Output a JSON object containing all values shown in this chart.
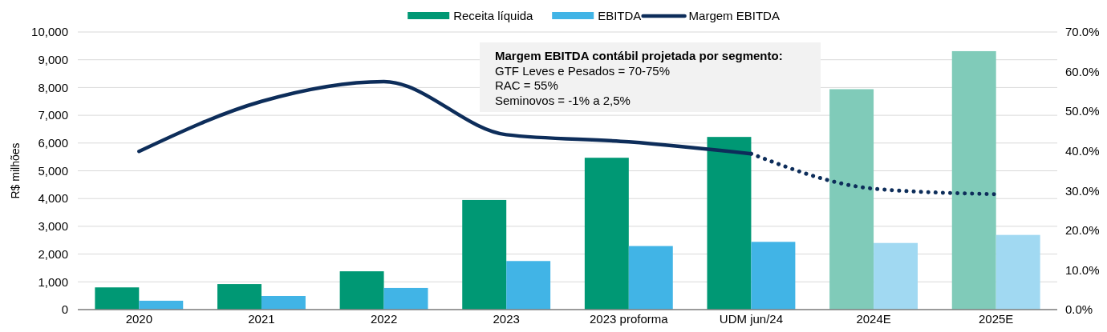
{
  "chart_data": {
    "type": "bar",
    "ylabel": "R$ milhões",
    "categories": [
      "2020",
      "2021",
      "2022",
      "2023",
      "2023 proforma",
      "UDM jun/24",
      "2024E",
      "2025E"
    ],
    "series": [
      {
        "name": "Receita líquida",
        "color": "#009874",
        "colors": [
          "#009874",
          "#009874",
          "#009874",
          "#009874",
          "#009874",
          "#009874",
          "#80cbb9",
          "#80cbb9"
        ],
        "values": [
          800,
          920,
          1380,
          3950,
          5470,
          6220,
          7940,
          9310
        ]
      },
      {
        "name": "EBITDA",
        "color": "#41b4e6",
        "colors": [
          "#41b4e6",
          "#41b4e6",
          "#41b4e6",
          "#41b4e6",
          "#41b4e6",
          "#41b4e6",
          "#a1d9f2",
          "#a1d9f2"
        ],
        "values": [
          320,
          490,
          780,
          1750,
          2290,
          2440,
          2400,
          2690
        ]
      },
      {
        "name": "Margem EBITDA",
        "type": "line",
        "axis": "y2",
        "color": "#0d2d5a",
        "line_style": "solid",
        "values": [
          39.9,
          52.5,
          57.5,
          44.1,
          42.3,
          39.3,
          null,
          null
        ]
      },
      {
        "type": "line",
        "axis": "y2",
        "color": "#0d2d5a",
        "line_style": "dotted",
        "values": [
          null,
          null,
          null,
          null,
          null,
          39.3,
          30.5,
          29.1
        ]
      }
    ],
    "ylim": [
      0,
      10000
    ],
    "yticks": [
      {
        "value": 0,
        "label": "0"
      },
      {
        "value": 1000,
        "label": "1,000"
      },
      {
        "value": 2000,
        "label": "2,000"
      },
      {
        "value": 3000,
        "label": "3,000"
      },
      {
        "value": 4000,
        "label": "4,000"
      },
      {
        "value": 5000,
        "label": "5,000"
      },
      {
        "value": 6000,
        "label": "6,000"
      },
      {
        "value": 7000,
        "label": "7,000"
      },
      {
        "value": 8000,
        "label": "8,000"
      },
      {
        "value": 9000,
        "label": "9,000"
      },
      {
        "value": 10000,
        "label": "10,000"
      }
    ],
    "y2lim": [
      0,
      70
    ],
    "y2ticks": [
      {
        "value": 0,
        "label": "0.0%"
      },
      {
        "value": 10,
        "label": "10.0%"
      },
      {
        "value": 20,
        "label": "20.0%"
      },
      {
        "value": 30,
        "label": "30.0%"
      },
      {
        "value": 40,
        "label": "40.0%"
      },
      {
        "value": 50,
        "label": "50.0%"
      },
      {
        "value": 60,
        "label": "60.0%"
      },
      {
        "value": 70,
        "label": "70.0%"
      }
    ],
    "grid": "y",
    "legend": "top",
    "annotations": [
      "Margem EBITDA contábil projetada por segmento:",
      "GTF Leves e Pesados = 70-75%",
      "RAC = 55%",
      "Seminovos = -1% a 2,5%"
    ]
  }
}
